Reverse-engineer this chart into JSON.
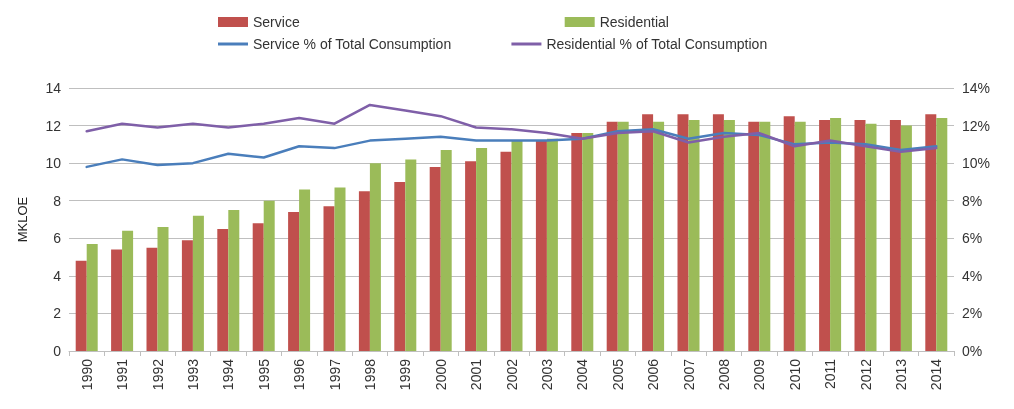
{
  "chart_data": {
    "type": "bar",
    "ylabel": "MKLOE",
    "categories": [
      "1990",
      "1991",
      "1992",
      "1993",
      "1994",
      "1995",
      "1996",
      "1997",
      "1998",
      "1999",
      "2000",
      "2001",
      "2002",
      "2003",
      "2004",
      "2005",
      "2006",
      "2007",
      "2008",
      "2009",
      "2010",
      "2011",
      "2012",
      "2013",
      "2014"
    ],
    "series": [
      {
        "name": "Service",
        "color": "#c0504d",
        "values": [
          4.8,
          5.4,
          5.5,
          5.9,
          6.5,
          6.8,
          7.4,
          7.7,
          8.5,
          9.0,
          9.8,
          10.1,
          10.6,
          11.2,
          11.6,
          12.2,
          12.6,
          12.6,
          12.6,
          12.2,
          12.5,
          12.3,
          12.3,
          12.3,
          12.6
        ]
      },
      {
        "name": "Residential",
        "color": "#9bbb59",
        "values": [
          5.7,
          6.4,
          6.6,
          7.2,
          7.5,
          8.0,
          8.6,
          8.7,
          10.0,
          10.2,
          10.7,
          10.8,
          11.2,
          11.3,
          11.6,
          12.2,
          12.2,
          12.3,
          12.3,
          12.2,
          12.2,
          12.4,
          12.1,
          12.0,
          12.4
        ]
      },
      {
        "name": "Service % of Total Consumption",
        "type": "line",
        "axis": "y2",
        "color": "#4a7ebb",
        "values": [
          9.8,
          10.2,
          9.9,
          10.0,
          10.5,
          10.3,
          10.9,
          10.8,
          11.2,
          11.3,
          11.4,
          11.2,
          11.2,
          11.2,
          11.3,
          11.7,
          11.8,
          11.3,
          11.6,
          11.5,
          11.0,
          11.1,
          11.0,
          10.7,
          10.9
        ]
      },
      {
        "name": "Residential % of Total Consumption",
        "type": "line",
        "axis": "y2",
        "color": "#7f5fa8",
        "values": [
          11.7,
          12.1,
          11.9,
          12.1,
          11.9,
          12.1,
          12.4,
          12.1,
          13.1,
          12.8,
          12.5,
          11.9,
          11.8,
          11.6,
          11.3,
          11.6,
          11.7,
          11.1,
          11.4,
          11.6,
          10.9,
          11.2,
          10.9,
          10.6,
          10.8
        ]
      }
    ],
    "ylim": [
      0,
      14
    ],
    "yticks": [
      0,
      2,
      4,
      6,
      8,
      10,
      12,
      14
    ],
    "y2lim": [
      0,
      14
    ],
    "y2ticks": [
      {
        "value": 0,
        "label": "0%"
      },
      {
        "value": 2,
        "label": "2%"
      },
      {
        "value": 4,
        "label": "4%"
      },
      {
        "value": 6,
        "label": "6%"
      },
      {
        "value": 8,
        "label": "8%"
      },
      {
        "value": 10,
        "label": "10%"
      },
      {
        "value": 12,
        "label": "12%"
      },
      {
        "value": 14,
        "label": "14%"
      }
    ],
    "grid": "y",
    "legend": "top",
    "marker": "none",
    "line_style": "solid"
  }
}
